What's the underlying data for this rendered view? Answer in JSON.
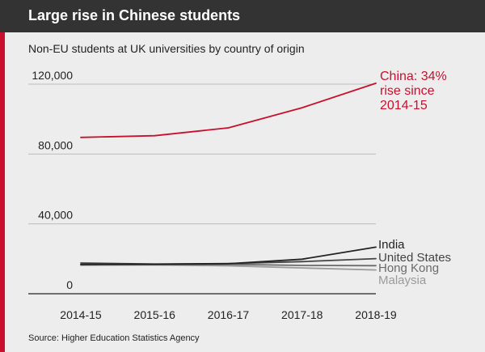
{
  "header": {
    "title": "Large rise in Chinese students"
  },
  "subtitle": "Non-EU students at UK universities by country of origin",
  "source": "Source: Higher Education Statistics Agency",
  "colors": {
    "background": "#ededed",
    "header": "#333333",
    "accent": "#c8102e",
    "china": "#c8102e",
    "india": "#222222",
    "united_states": "#444444",
    "hong_kong": "#6b6b6b",
    "malaysia": "#9a9a9a",
    "grid": "#bdbdbd",
    "axis": "#222222"
  },
  "chart_data": {
    "type": "line",
    "x": [
      "2014-15",
      "2015-16",
      "2016-17",
      "2017-18",
      "2018-19"
    ],
    "ylim": [
      0,
      120000
    ],
    "yticks": [
      0,
      40000,
      80000,
      120000
    ],
    "ytick_labels": [
      "0",
      "40,000",
      "80,000",
      "120,000"
    ],
    "grid": true,
    "series": [
      {
        "name": "China",
        "values": [
          89500,
          90500,
          95000,
          106500,
          120500
        ],
        "color": "#c8102e",
        "label_lines": [
          "China: 34%",
          "rise since",
          "2014-15"
        ]
      },
      {
        "name": "India",
        "values": [
          16800,
          16900,
          17200,
          19800,
          26700
        ],
        "color": "#222222",
        "label_lines": [
          "India"
        ]
      },
      {
        "name": "United States",
        "values": [
          17600,
          17000,
          17300,
          18400,
          20100
        ],
        "color": "#444444",
        "label_lines": [
          "United States"
        ]
      },
      {
        "name": "Hong Kong",
        "values": [
          16400,
          16600,
          16800,
          16200,
          16100
        ],
        "color": "#6b6b6b",
        "label_lines": [
          "Hong Kong"
        ]
      },
      {
        "name": "Malaysia",
        "values": [
          16700,
          16500,
          16000,
          14800,
          13600
        ],
        "color": "#9a9a9a",
        "label_lines": [
          "Malaysia"
        ]
      }
    ]
  }
}
